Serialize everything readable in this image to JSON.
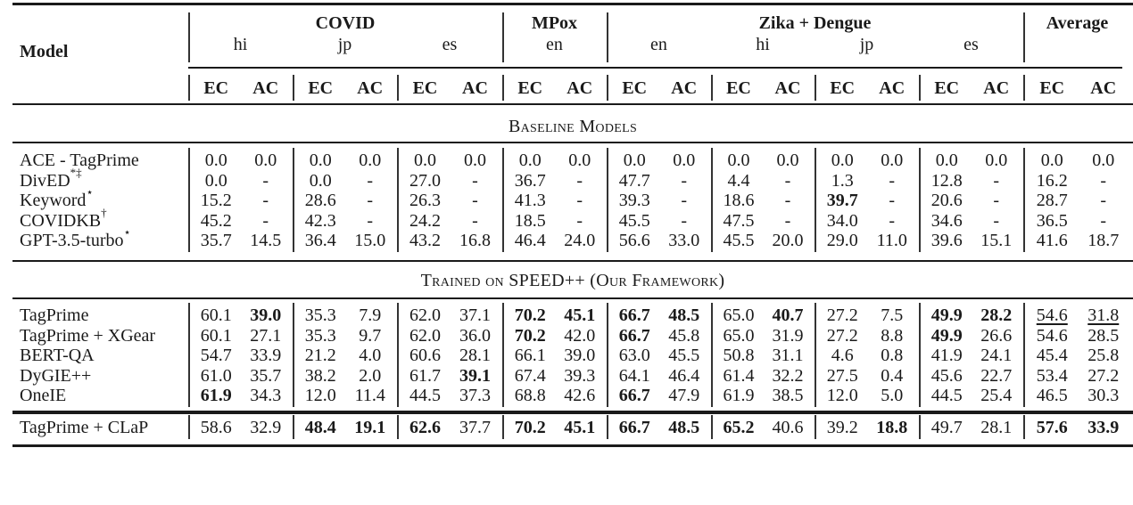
{
  "table": {
    "header": {
      "model_label": "Model",
      "datasets": [
        {
          "name": "COVID",
          "languages": [
            "hi",
            "jp",
            "es"
          ]
        },
        {
          "name": "MPox",
          "languages": [
            "en"
          ]
        },
        {
          "name": "Zika + Dengue",
          "languages": [
            "en",
            "hi",
            "jp",
            "es"
          ]
        },
        {
          "name": "Average",
          "languages": [
            ""
          ]
        }
      ],
      "metric_ec": "EC",
      "metric_ac": "AC"
    },
    "sections": [
      {
        "title": "Baseline Models",
        "rows": [
          {
            "model": "ACE - TagPrime",
            "sup": "",
            "values": [
              "0.0",
              "0.0",
              "0.0",
              "0.0",
              "0.0",
              "0.0",
              "0.0",
              "0.0",
              "0.0",
              "0.0",
              "0.0",
              "0.0",
              "0.0",
              "0.0",
              "0.0",
              "0.0",
              "0.0",
              "0.0"
            ],
            "bold": [],
            "underline": []
          },
          {
            "model": "DivED",
            "sup": "*‡",
            "values": [
              "0.0",
              "-",
              "0.0",
              "-",
              "27.0",
              "-",
              "36.7",
              "-",
              "47.7",
              "-",
              "4.4",
              "-",
              "1.3",
              "-",
              "12.8",
              "-",
              "16.2",
              "-"
            ],
            "bold": [],
            "underline": []
          },
          {
            "model": "Keyword",
            "sup": "⋆",
            "values": [
              "15.2",
              "-",
              "28.6",
              "-",
              "26.3",
              "-",
              "41.3",
              "-",
              "39.3",
              "-",
              "18.6",
              "-",
              "39.7",
              "-",
              "20.6",
              "-",
              "28.7",
              "-"
            ],
            "bold": [
              12
            ],
            "underline": []
          },
          {
            "model": "COVIDKB",
            "sup": "†",
            "values": [
              "45.2",
              "-",
              "42.3",
              "-",
              "24.2",
              "-",
              "18.5",
              "-",
              "45.5",
              "-",
              "47.5",
              "-",
              "34.0",
              "-",
              "34.6",
              "-",
              "36.5",
              "-"
            ],
            "bold": [],
            "underline": []
          },
          {
            "model": "GPT-3.5-turbo",
            "sup": "⋆",
            "values": [
              "35.7",
              "14.5",
              "36.4",
              "15.0",
              "43.2",
              "16.8",
              "46.4",
              "24.0",
              "56.6",
              "33.0",
              "45.5",
              "20.0",
              "29.0",
              "11.0",
              "39.6",
              "15.1",
              "41.6",
              "18.7"
            ],
            "bold": [],
            "underline": []
          }
        ]
      },
      {
        "title": "Trained on SPEED++ (Our Framework)",
        "rows": [
          {
            "model": "TagPrime",
            "sup": "",
            "values": [
              "60.1",
              "39.0",
              "35.3",
              "7.9",
              "62.0",
              "37.1",
              "70.2",
              "45.1",
              "66.7",
              "48.5",
              "65.0",
              "40.7",
              "27.2",
              "7.5",
              "49.9",
              "28.2",
              "54.6",
              "31.8"
            ],
            "bold": [
              1,
              6,
              7,
              8,
              9,
              11,
              14,
              15
            ],
            "underline": [
              16,
              17
            ]
          },
          {
            "model": "TagPrime + XGear",
            "sup": "",
            "values": [
              "60.1",
              "27.1",
              "35.3",
              "9.7",
              "62.0",
              "36.0",
              "70.2",
              "42.0",
              "66.7",
              "45.8",
              "65.0",
              "31.9",
              "27.2",
              "8.8",
              "49.9",
              "26.6",
              "54.6",
              "28.5"
            ],
            "bold": [
              6,
              8,
              14
            ],
            "underline": []
          },
          {
            "model": "BERT-QA",
            "sup": "",
            "values": [
              "54.7",
              "33.9",
              "21.2",
              "4.0",
              "60.6",
              "28.1",
              "66.1",
              "39.0",
              "63.0",
              "45.5",
              "50.8",
              "31.1",
              "4.6",
              "0.8",
              "41.9",
              "24.1",
              "45.4",
              "25.8"
            ],
            "bold": [],
            "underline": []
          },
          {
            "model": "DyGIE++",
            "sup": "",
            "values": [
              "61.0",
              "35.7",
              "38.2",
              "2.0",
              "61.7",
              "39.1",
              "67.4",
              "39.3",
              "64.1",
              "46.4",
              "61.4",
              "32.2",
              "27.5",
              "0.4",
              "45.6",
              "22.7",
              "53.4",
              "27.2"
            ],
            "bold": [
              5
            ],
            "underline": []
          },
          {
            "model": "OneIE",
            "sup": "",
            "values": [
              "61.9",
              "34.3",
              "12.0",
              "11.4",
              "44.5",
              "37.3",
              "68.8",
              "42.6",
              "66.7",
              "47.9",
              "61.9",
              "38.5",
              "12.0",
              "5.0",
              "44.5",
              "25.4",
              "46.5",
              "30.3"
            ],
            "bold": [
              0,
              8
            ],
            "underline": []
          }
        ]
      },
      {
        "title": "",
        "rows": [
          {
            "model": "TagPrime + CLaP",
            "sup": "",
            "values": [
              "58.6",
              "32.9",
              "48.4",
              "19.1",
              "62.6",
              "37.7",
              "70.2",
              "45.1",
              "66.7",
              "48.5",
              "65.2",
              "40.6",
              "39.2",
              "18.8",
              "49.7",
              "28.1",
              "57.6",
              "33.9"
            ],
            "bold": [
              2,
              3,
              4,
              6,
              7,
              8,
              9,
              10,
              13,
              16,
              17
            ],
            "underline": []
          }
        ]
      }
    ]
  }
}
